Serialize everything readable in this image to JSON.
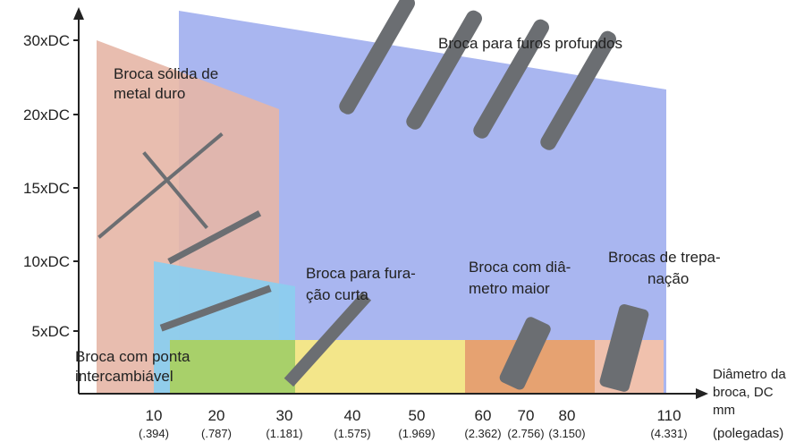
{
  "y_axis": {
    "labels": [
      "30xDC",
      "20xDC",
      "15xDC",
      "10xDC",
      "5xDC"
    ]
  },
  "x_axis": {
    "labels": [
      {
        "main": "10",
        "sub": "(.394)"
      },
      {
        "main": "20",
        "sub": "(.787)"
      },
      {
        "main": "30",
        "sub": "(1.181)"
      },
      {
        "main": "40",
        "sub": "(1.575)"
      },
      {
        "main": "50",
        "sub": "(1.969)"
      },
      {
        "main": "60",
        "sub": "(2.362)"
      },
      {
        "main": "70",
        "sub": "(2.756)"
      },
      {
        "main": "80",
        "sub": "(3.150)"
      },
      {
        "main": "110",
        "sub": "(4.331)"
      }
    ],
    "title": [
      "Diâmetro da",
      "broca, DC",
      "mm",
      "(polegadas)"
    ]
  },
  "regions": {
    "deep_hole": [
      "Broca para furos profundos"
    ],
    "solid_carbide": [
      "Broca sólida de",
      "metal duro"
    ],
    "short_hole": [
      "Broca para fura-",
      "ção curta"
    ],
    "large_diameter": [
      "Broca com diâ-",
      "metro maior"
    ],
    "trepanning": [
      "Brocas de trepa-",
      "nação"
    ],
    "exchangeable_tip": [
      "Broca com ponta",
      "intercambiável"
    ]
  }
}
